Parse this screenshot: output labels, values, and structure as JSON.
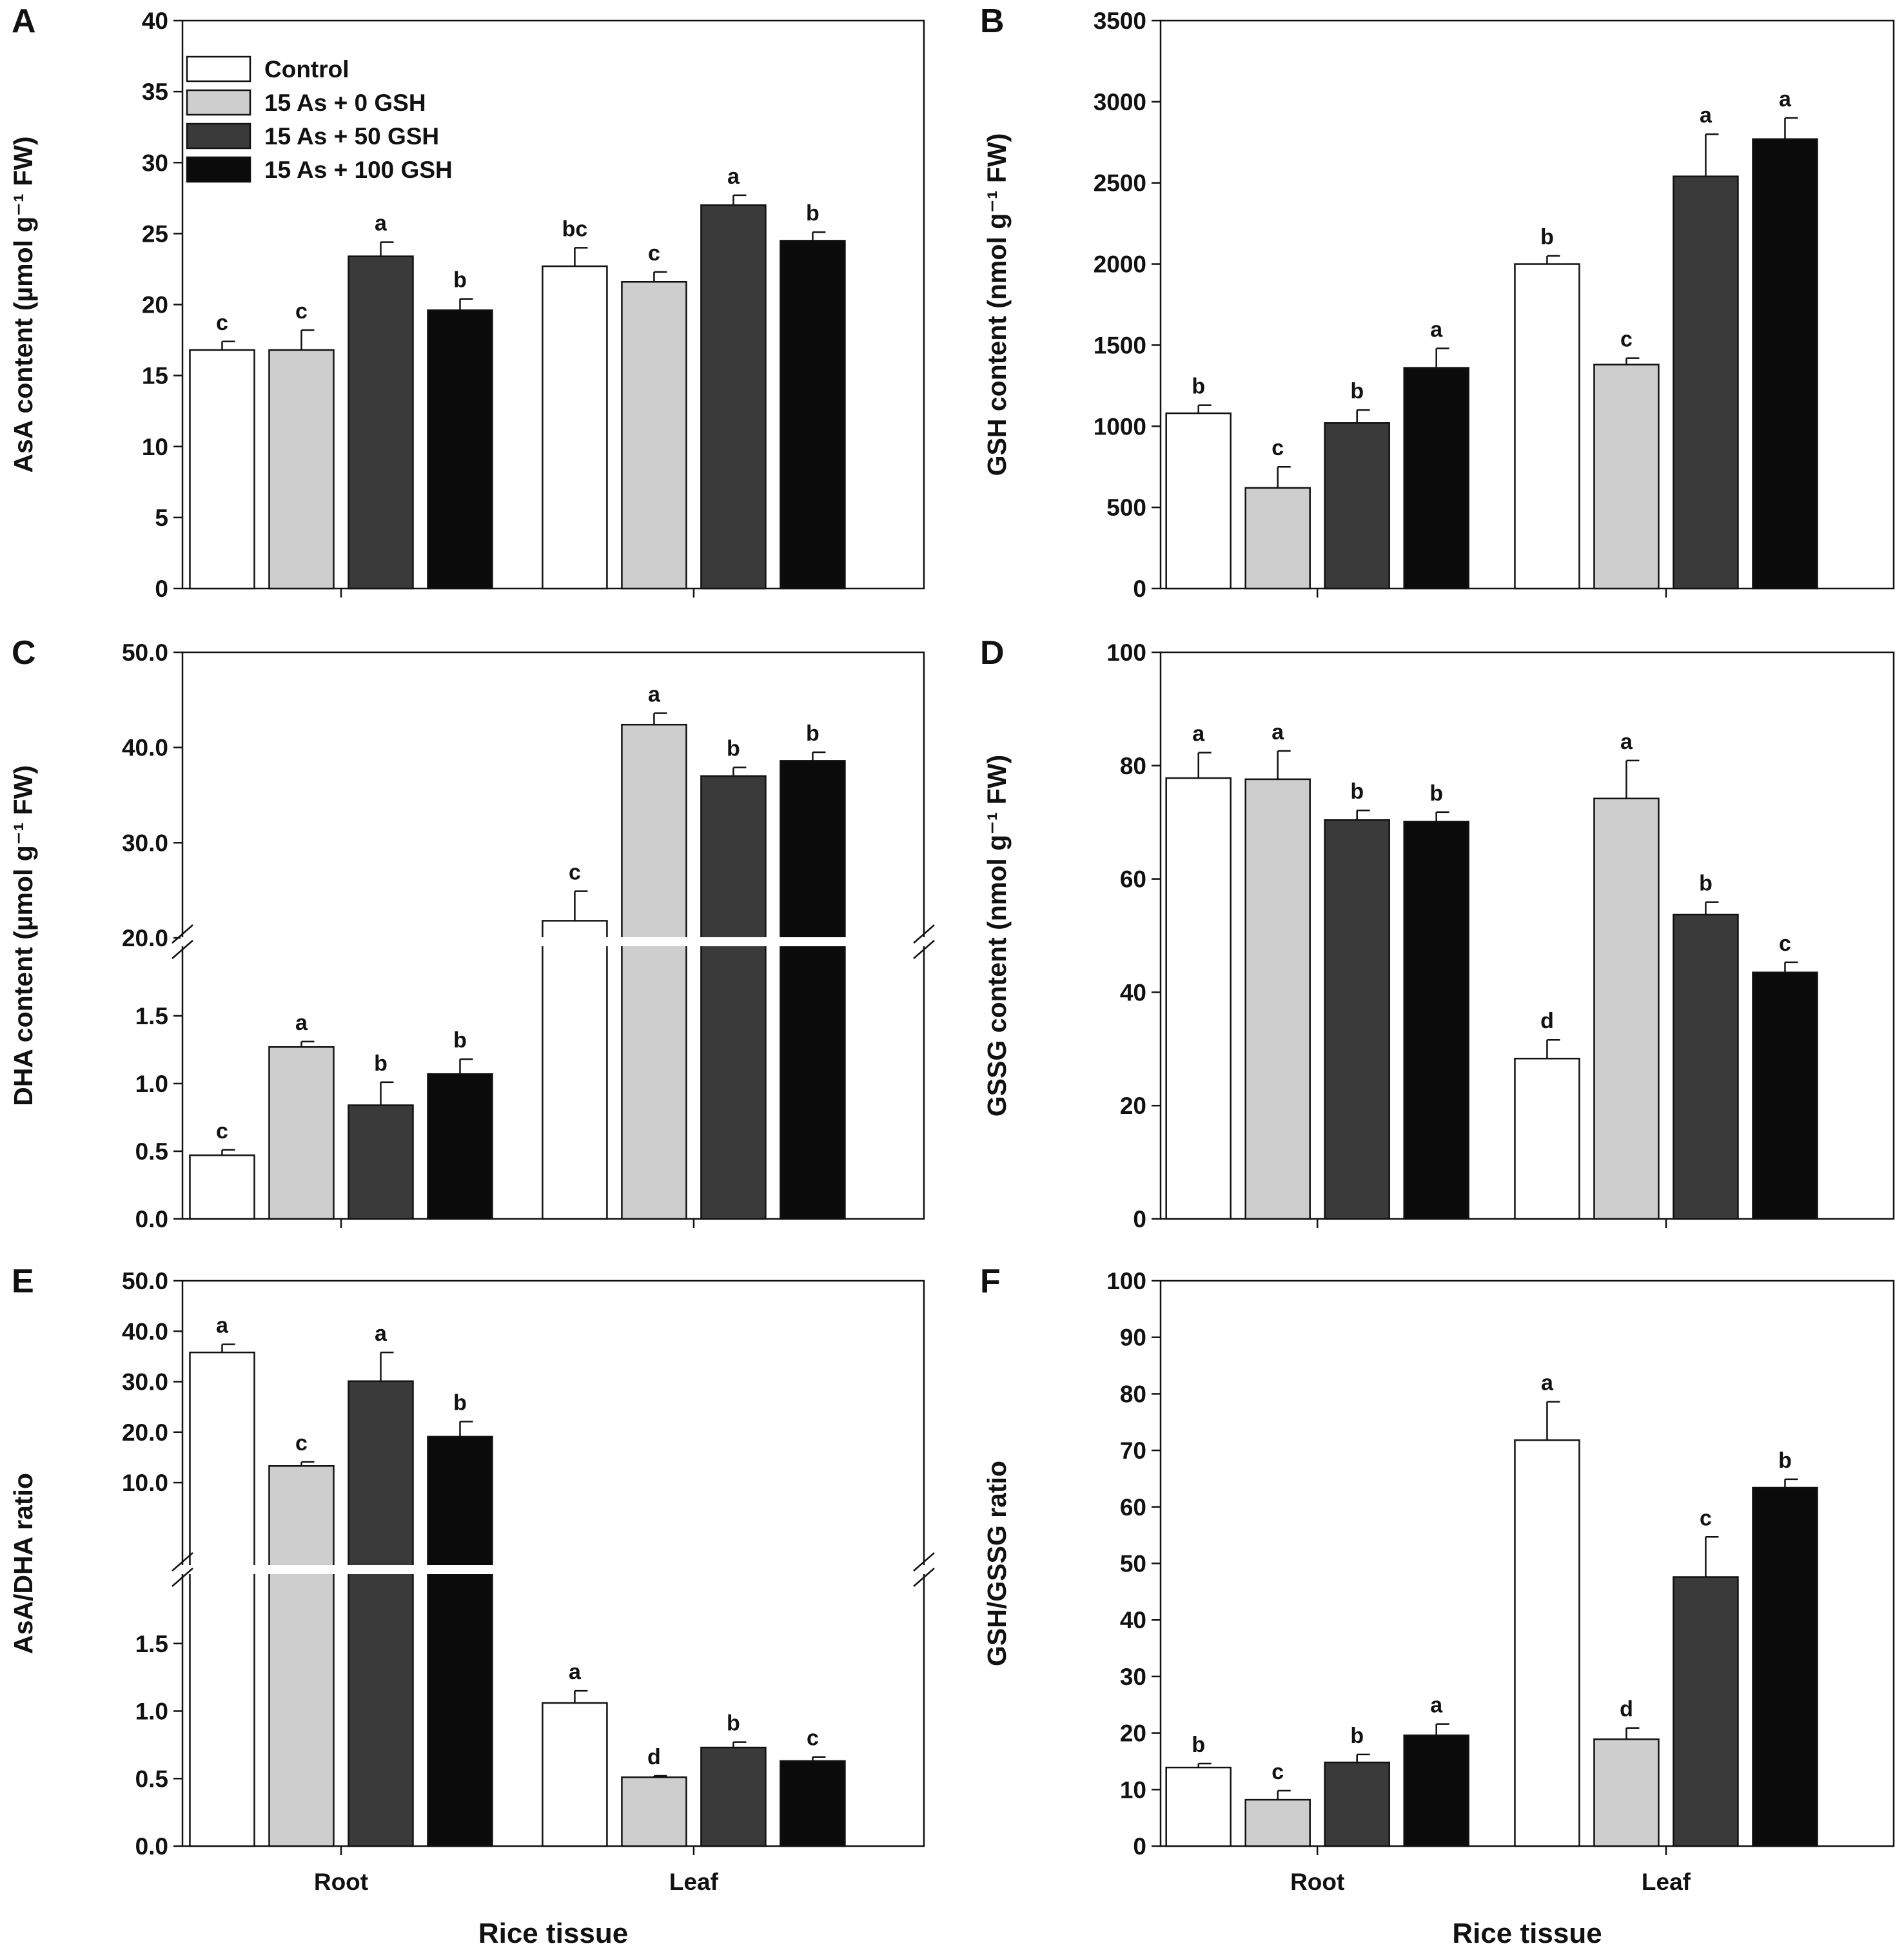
{
  "colors": {
    "Control": "#ffffff",
    "15 As + 0 GSH": "#cecece",
    "15 As + 50 GSH": "#3a3a3a",
    "15 As + 100 GSH": "#0b0b0b",
    "outline": "#111111"
  },
  "chart_data": [
    {
      "panel": "A",
      "type": "bar",
      "categories": [
        "Root",
        "Leaf"
      ],
      "series": [
        {
          "name": "Control",
          "values": [
            16.8,
            22.7
          ],
          "errors": [
            0.6,
            1.3
          ],
          "letters": [
            "c",
            "bc"
          ]
        },
        {
          "name": "15 As + 0 GSH",
          "values": [
            16.8,
            21.6
          ],
          "errors": [
            1.4,
            0.7
          ],
          "letters": [
            "c",
            "c"
          ]
        },
        {
          "name": "15 As + 50 GSH",
          "values": [
            23.4,
            27.0
          ],
          "errors": [
            1.0,
            0.7
          ],
          "letters": [
            "a",
            "a"
          ]
        },
        {
          "name": "15 As + 100 GSH",
          "values": [
            19.6,
            24.5
          ],
          "errors": [
            0.8,
            0.6
          ],
          "letters": [
            "b",
            "b"
          ]
        }
      ],
      "ylabel": "AsA content (µmol g⁻¹ FW)",
      "xlabel": "",
      "ylim": [
        0,
        40
      ],
      "yticks": [
        0,
        5,
        10,
        15,
        20,
        25,
        30,
        35,
        40
      ],
      "legend": {
        "position": "top-left",
        "entries": [
          "Control",
          "15 As + 0 GSH",
          "15 As + 50 GSH",
          "15 As + 100 GSH"
        ]
      }
    },
    {
      "panel": "B",
      "type": "bar",
      "categories": [
        "Root",
        "Leaf"
      ],
      "series": [
        {
          "name": "Control",
          "values": [
            1080,
            2000
          ],
          "errors": [
            50,
            50
          ],
          "letters": [
            "b",
            "b"
          ]
        },
        {
          "name": "15 As + 0 GSH",
          "values": [
            620,
            1380
          ],
          "errors": [
            130,
            40
          ],
          "letters": [
            "c",
            "c"
          ]
        },
        {
          "name": "15 As + 50 GSH",
          "values": [
            1020,
            2540
          ],
          "errors": [
            80,
            260
          ],
          "letters": [
            "b",
            "a"
          ]
        },
        {
          "name": "15 As + 100 GSH",
          "values": [
            1360,
            2770
          ],
          "errors": [
            120,
            130
          ],
          "letters": [
            "a",
            "a"
          ]
        }
      ],
      "ylabel": "GSH content (nmol g⁻¹ FW)",
      "xlabel": "",
      "ylim": [
        0,
        3500
      ],
      "yticks": [
        0,
        500,
        1000,
        1500,
        2000,
        2500,
        3000,
        3500
      ]
    },
    {
      "panel": "C",
      "type": "bar",
      "categories": [
        "Root",
        "Leaf"
      ],
      "series": [
        {
          "name": "Control",
          "values": [
            0.47,
            21.8
          ],
          "errors": [
            0.04,
            3.1
          ],
          "letters": [
            "c",
            "c"
          ]
        },
        {
          "name": "15 As + 0 GSH",
          "values": [
            1.27,
            42.4
          ],
          "errors": [
            0.04,
            1.2
          ],
          "letters": [
            "a",
            "a"
          ]
        },
        {
          "name": "15 As + 50 GSH",
          "values": [
            0.84,
            37.0
          ],
          "errors": [
            0.17,
            0.9
          ],
          "letters": [
            "b",
            "b"
          ]
        },
        {
          "name": "15 As + 100 GSH",
          "values": [
            1.07,
            38.6
          ],
          "errors": [
            0.11,
            0.9
          ],
          "letters": [
            "b",
            "b"
          ]
        }
      ],
      "ylabel": "DHA content (µmol g⁻¹ FW)",
      "xlabel": "",
      "broken_axis": {
        "lower": [
          0,
          2.0
        ],
        "upper": [
          20.0,
          50.0
        ]
      },
      "yticks_lower": [
        "0.0",
        "0.5",
        "1.0",
        "1.5"
      ],
      "yticks_upper": [
        "20.0",
        "30.0",
        "40.0",
        "50.0"
      ]
    },
    {
      "panel": "D",
      "type": "bar",
      "categories": [
        "Root",
        "Leaf"
      ],
      "series": [
        {
          "name": "Control",
          "values": [
            77.8,
            28.3
          ],
          "errors": [
            4.5,
            3.3
          ],
          "letters": [
            "a",
            "d"
          ]
        },
        {
          "name": "15 As + 0 GSH",
          "values": [
            77.6,
            74.2
          ],
          "errors": [
            5.0,
            6.7
          ],
          "letters": [
            "a",
            "a"
          ]
        },
        {
          "name": "15 As + 50 GSH",
          "values": [
            70.4,
            53.7
          ],
          "errors": [
            1.7,
            2.2
          ],
          "letters": [
            "b",
            "b"
          ]
        },
        {
          "name": "15 As + 100 GSH",
          "values": [
            70.1,
            43.5
          ],
          "errors": [
            1.7,
            1.8
          ],
          "letters": [
            "b",
            "c"
          ]
        }
      ],
      "ylabel": "GSSG content (nmol g⁻¹ FW)",
      "xlabel": "",
      "ylim": [
        0,
        100
      ],
      "yticks": [
        0,
        20,
        40,
        60,
        80,
        100
      ]
    },
    {
      "panel": "E",
      "type": "bar",
      "categories": [
        "Root",
        "Leaf"
      ],
      "series": [
        {
          "name": "Control",
          "values": [
            35.8,
            1.06
          ],
          "errors": [
            1.6,
            0.09
          ],
          "letters": [
            "a",
            "a"
          ]
        },
        {
          "name": "15 As + 0 GSH",
          "values": [
            13.3,
            0.51
          ],
          "errors": [
            0.8,
            0.01
          ],
          "letters": [
            "c",
            "d"
          ]
        },
        {
          "name": "15 As + 50 GSH",
          "values": [
            30.1,
            0.73
          ],
          "errors": [
            5.7,
            0.04
          ],
          "letters": [
            "a",
            "b"
          ]
        },
        {
          "name": "15 As + 100 GSH",
          "values": [
            19.1,
            0.63
          ],
          "errors": [
            3.0,
            0.03
          ],
          "letters": [
            "b",
            "c"
          ]
        }
      ],
      "ylabel": "AsA/DHA ratio",
      "xlabel": "Rice tissue",
      "broken_axis": {
        "lower": [
          0,
          2.0
        ],
        "upper": [
          0,
          50.0
        ]
      },
      "yticks_lower": [
        "0.0",
        "0.5",
        "1.0",
        "1.5"
      ],
      "yticks_upper": [
        "10.0",
        "20.0",
        "30.0",
        "40.0",
        "50.0"
      ]
    },
    {
      "panel": "F",
      "type": "bar",
      "categories": [
        "Root",
        "Leaf"
      ],
      "series": [
        {
          "name": "Control",
          "values": [
            13.9,
            71.8
          ],
          "errors": [
            0.7,
            6.8
          ],
          "letters": [
            "b",
            "a"
          ]
        },
        {
          "name": "15 As + 0 GSH",
          "values": [
            8.2,
            18.9
          ],
          "errors": [
            1.6,
            2.0
          ],
          "letters": [
            "c",
            "d"
          ]
        },
        {
          "name": "15 As + 50 GSH",
          "values": [
            14.8,
            47.6
          ],
          "errors": [
            1.4,
            7.1
          ],
          "letters": [
            "b",
            "c"
          ]
        },
        {
          "name": "15 As + 100 GSH",
          "values": [
            19.6,
            63.4
          ],
          "errors": [
            2.0,
            1.5
          ],
          "letters": [
            "a",
            "b"
          ]
        }
      ],
      "ylabel": "GSH/GSSG ratio",
      "xlabel": "Rice tissue",
      "ylim": [
        0,
        100
      ],
      "yticks": [
        0,
        10,
        20,
        30,
        40,
        50,
        60,
        70,
        80,
        90,
        100
      ]
    }
  ]
}
